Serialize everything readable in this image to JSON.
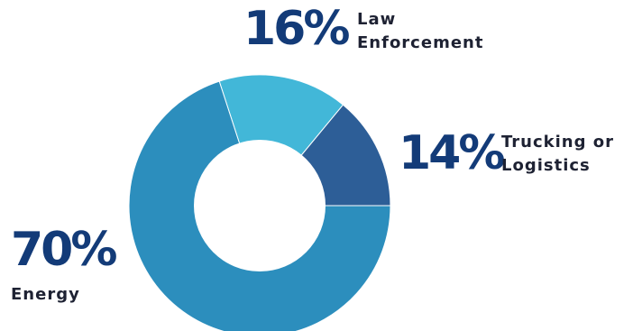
{
  "chart_data": {
    "type": "pie",
    "donut": true,
    "slices": [
      {
        "label_lines": [
          "Law",
          "Enforcement"
        ],
        "value": 16,
        "value_label": "16%",
        "color": "#42b7d8"
      },
      {
        "label_lines": [
          "Trucking or",
          "Logistics"
        ],
        "value": 14,
        "value_label": "14%",
        "color": "#2d5e97"
      },
      {
        "label_lines": [
          "Energy"
        ],
        "value": 70,
        "value_label": "70%",
        "color": "#2c8ebd"
      }
    ],
    "start_angle_deg": -18,
    "direction": "clockwise",
    "hole_color": "#ffffff",
    "text_color": "#133b78"
  }
}
